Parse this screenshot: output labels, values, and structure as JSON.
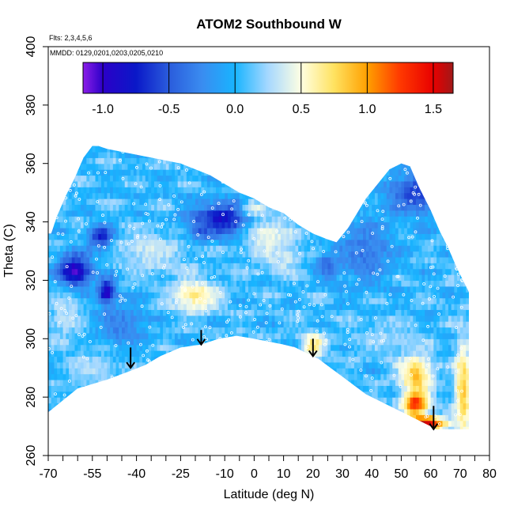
{
  "chart_data": {
    "type": "heatmap",
    "title": "ATOM2 Southbound W",
    "subtitle_lines": [
      "Flts: 2,3,4,5,6",
      "MMDD: 0129,0201,0203,0205,0210"
    ],
    "xlabel": "Latitude (deg N)",
    "ylabel": "Theta (C)",
    "xlim": [
      -70,
      80
    ],
    "ylim": [
      260,
      400
    ],
    "x_ticks": [
      "-70",
      "-55",
      "-40",
      "-25",
      "-10",
      "0",
      "10",
      "20",
      "30",
      "40",
      "50",
      "60",
      "70",
      "80"
    ],
    "y_ticks": [
      "260",
      "280",
      "300",
      "320",
      "340",
      "360",
      "380",
      "400"
    ],
    "colorbar": {
      "range": [
        -1.15,
        1.65
      ],
      "tick_values": [
        -1.0,
        -0.5,
        0.0,
        0.5,
        1.0,
        1.5
      ],
      "tick_labels": [
        "-1.0",
        "-0.5",
        "0.0",
        "0.5",
        "1.0",
        "1.5"
      ],
      "colors": [
        {
          "value": -1.15,
          "color": "#8c1ee8"
        },
        {
          "value": -1.0,
          "color": "#2b00c8"
        },
        {
          "value": -0.75,
          "color": "#0a18c8"
        },
        {
          "value": -0.5,
          "color": "#2a5cdc"
        },
        {
          "value": -0.25,
          "color": "#3a8cf0"
        },
        {
          "value": 0.0,
          "color": "#18b4ff"
        },
        {
          "value": 0.25,
          "color": "#a6d8ff"
        },
        {
          "value": 0.5,
          "color": "#ffffe2"
        },
        {
          "value": 0.75,
          "color": "#ffe260"
        },
        {
          "value": 1.0,
          "color": "#ffa000"
        },
        {
          "value": 1.25,
          "color": "#ff3800"
        },
        {
          "value": 1.5,
          "color": "#e80000"
        },
        {
          "value": 1.65,
          "color": "#a01818"
        }
      ]
    },
    "field_background_value": 0.05,
    "coverage_bottom": [
      [
        -71,
        274
      ],
      [
        -60,
        283
      ],
      [
        -50,
        286
      ],
      [
        -42,
        289
      ],
      [
        -37,
        291
      ],
      [
        -32,
        294
      ],
      [
        -25,
        297
      ],
      [
        -18,
        298
      ],
      [
        -12,
        300
      ],
      [
        -6,
        301
      ],
      [
        0,
        300
      ],
      [
        5,
        299
      ],
      [
        10,
        298
      ],
      [
        14,
        297
      ],
      [
        18,
        295
      ],
      [
        22,
        293
      ],
      [
        26,
        290
      ],
      [
        30,
        287
      ],
      [
        34,
        284
      ],
      [
        38,
        281
      ],
      [
        42,
        279
      ],
      [
        46,
        277
      ],
      [
        50,
        275
      ],
      [
        54,
        273
      ],
      [
        58,
        271
      ],
      [
        62,
        269
      ],
      [
        66,
        269
      ],
      [
        70,
        269
      ],
      [
        73,
        269
      ]
    ],
    "coverage_top": [
      [
        -71,
        336
      ],
      [
        -69,
        336
      ],
      [
        -67,
        342
      ],
      [
        -64,
        349
      ],
      [
        -61,
        355
      ],
      [
        -58,
        362
      ],
      [
        -55,
        366
      ],
      [
        -53,
        366
      ],
      [
        -50,
        365
      ],
      [
        -45,
        364
      ],
      [
        -40,
        363
      ],
      [
        -35,
        362
      ],
      [
        -30,
        361
      ],
      [
        -25,
        360
      ],
      [
        -20,
        358
      ],
      [
        -15,
        356
      ],
      [
        -10,
        353
      ],
      [
        -5,
        350
      ],
      [
        0,
        348
      ],
      [
        5,
        345
      ],
      [
        10,
        343
      ],
      [
        15,
        339
      ],
      [
        20,
        336
      ],
      [
        25,
        334
      ],
      [
        28,
        333
      ],
      [
        32,
        338
      ],
      [
        35,
        343
      ],
      [
        38,
        348
      ],
      [
        42,
        353
      ],
      [
        46,
        358
      ],
      [
        50,
        360
      ],
      [
        53,
        359
      ],
      [
        56,
        352
      ],
      [
        60,
        344
      ],
      [
        63,
        337
      ],
      [
        66,
        331
      ],
      [
        69,
        324
      ],
      [
        72,
        318
      ],
      [
        73,
        316
      ]
    ],
    "features": [
      {
        "x": -61,
        "y": 323,
        "sx": 4,
        "sy": 4,
        "value": -1.05
      },
      {
        "x": -50,
        "y": 316,
        "sx": 2,
        "sy": 3,
        "value": -1.1
      },
      {
        "x": -52,
        "y": 335,
        "sx": 3,
        "sy": 3,
        "value": -0.8
      },
      {
        "x": -10,
        "y": 341,
        "sx": 8,
        "sy": 4,
        "value": -0.85
      },
      {
        "x": -18,
        "y": 337,
        "sx": 3,
        "sy": 2,
        "value": -0.55
      },
      {
        "x": 55,
        "y": 350,
        "sx": 7,
        "sy": 5,
        "value": -0.6
      },
      {
        "x": 25,
        "y": 325,
        "sx": 3,
        "sy": 3,
        "value": -0.45
      },
      {
        "x": -45,
        "y": 305,
        "sx": 6,
        "sy": 6,
        "value": -0.3
      },
      {
        "x": 38,
        "y": 330,
        "sx": 7,
        "sy": 8,
        "value": -0.35
      },
      {
        "x": -35,
        "y": 330,
        "sx": 8,
        "sy": 5,
        "value": 0.35
      },
      {
        "x": -20,
        "y": 315,
        "sx": 6,
        "sy": 4,
        "value": 0.65
      },
      {
        "x": 5,
        "y": 335,
        "sx": 6,
        "sy": 6,
        "value": 0.45
      },
      {
        "x": 10,
        "y": 328,
        "sx": 4,
        "sy": 4,
        "value": 0.35
      },
      {
        "x": -64,
        "y": 308,
        "sx": 4,
        "sy": 6,
        "value": 0.3
      },
      {
        "x": 0,
        "y": 345,
        "sx": 3,
        "sy": 2,
        "value": 0.45
      },
      {
        "x": 20,
        "y": 298,
        "sx": 3,
        "sy": 3,
        "value": 0.7
      },
      {
        "x": 55,
        "y": 288,
        "sx": 4,
        "sy": 5,
        "value": 0.85
      },
      {
        "x": 55,
        "y": 278,
        "sx": 3,
        "sy": 3,
        "value": 1.3
      },
      {
        "x": 58,
        "y": 271,
        "sx": 5,
        "sy": 2,
        "value": 1.55
      },
      {
        "x": 71,
        "y": 282,
        "sx": 2,
        "sy": 12,
        "value": 0.85
      },
      {
        "x": 45,
        "y": 300,
        "sx": 8,
        "sy": 4,
        "value": 0.25
      },
      {
        "x": -55,
        "y": 290,
        "sx": 6,
        "sy": 4,
        "value": 0.3
      }
    ],
    "arrows": [
      {
        "x": -42,
        "y_top": 297,
        "y_bottom": 290
      },
      {
        "x": -18,
        "y_top": 303,
        "y_bottom": 298
      },
      {
        "x": 20,
        "y_top": 300,
        "y_bottom": 294
      },
      {
        "x": 61,
        "y_top": 277,
        "y_bottom": 269
      }
    ],
    "data_points_marker": "white-circle"
  }
}
